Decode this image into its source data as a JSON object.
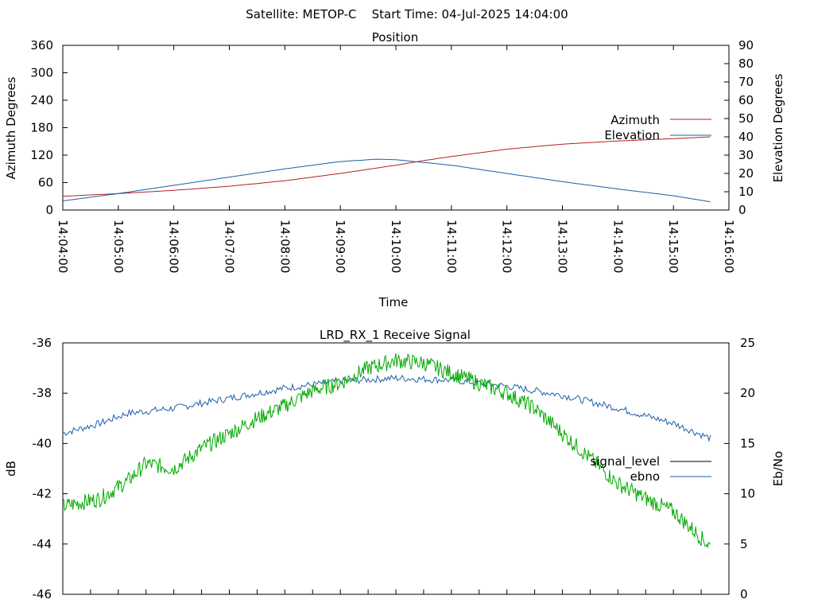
{
  "header": {
    "text": "Satellite: METOP-C    Start Time: 04-Jul-2025 14:04:00"
  },
  "colors": {
    "azimuth": "#b22222",
    "elevation": "#1f5fa8",
    "signal_level": "#000000",
    "ebno": "#1f5fa8",
    "green_trace": "#00aa00",
    "axis": "#000000"
  },
  "chart_data": [
    {
      "type": "line",
      "title": "Position",
      "xlabel": "Time",
      "ylabel": "Azimuth Degrees",
      "y2label": "Elevation Degrees",
      "ylim": [
        0,
        360
      ],
      "y2lim": [
        0,
        90
      ],
      "yticks": [
        "0",
        "60",
        "120",
        "180",
        "240",
        "300",
        "360"
      ],
      "y2ticks": [
        "0",
        "10",
        "20",
        "30",
        "40",
        "50",
        "60",
        "70",
        "80",
        "90"
      ],
      "xlim": [
        "14:04:00",
        "14:16:00"
      ],
      "xticks": [
        "14:04:00",
        "14:05:00",
        "14:06:00",
        "14:07:00",
        "14:08:00",
        "14:09:00",
        "14:10:00",
        "14:11:00",
        "14:12:00",
        "14:13:00",
        "14:14:00",
        "14:15:00",
        "14:16:00"
      ],
      "legend": "right",
      "series": [
        {
          "name": "Azimuth",
          "axis": "left",
          "color": "#b22222",
          "x": [
            "14:04:00",
            "14:05:00",
            "14:06:00",
            "14:07:00",
            "14:08:00",
            "14:09:00",
            "14:10:00",
            "14:10:30",
            "14:11:00",
            "14:12:00",
            "14:13:00",
            "14:14:00",
            "14:15:00",
            "14:15:40"
          ],
          "y": [
            30,
            36,
            43,
            52,
            64,
            80,
            98,
            108,
            117,
            133,
            144,
            151,
            156,
            160
          ]
        },
        {
          "name": "Elevation",
          "axis": "right",
          "color": "#1f5fa8",
          "x": [
            "14:04:00",
            "14:05:00",
            "14:06:00",
            "14:07:00",
            "14:08:00",
            "14:09:00",
            "14:09:40",
            "14:10:00",
            "14:11:00",
            "14:12:00",
            "14:13:00",
            "14:14:00",
            "14:15:00",
            "14:15:40"
          ],
          "y": [
            5,
            9,
            13.5,
            18,
            22.5,
            26.5,
            27.8,
            27.5,
            24.5,
            20,
            15.5,
            11.5,
            7.8,
            4.5
          ]
        }
      ]
    },
    {
      "type": "line",
      "title": "LRD_RX_1 Receive Signal",
      "ylabel": "dB",
      "y2label": "Eb/No",
      "ylim": [
        -46,
        -36
      ],
      "y2lim": [
        0,
        25
      ],
      "yticks": [
        "-36",
        "-38",
        "-40",
        "-42",
        "-44",
        "-46"
      ],
      "y2ticks": [
        "0",
        "5",
        "10",
        "15",
        "20",
        "25"
      ],
      "xlim": [
        "14:04:00",
        "14:16:00"
      ],
      "legend": "right",
      "series": [
        {
          "name": "signal_level",
          "axis": "left",
          "color": "#000000",
          "x": [],
          "y": []
        },
        {
          "name": "ebno",
          "axis": "right",
          "color": "#1f5fa8",
          "x": [
            "14:04:00",
            "14:04:40",
            "14:05:10",
            "14:06:00",
            "14:07:00",
            "14:08:00",
            "14:09:00",
            "14:10:00",
            "14:11:00",
            "14:12:00",
            "14:13:00",
            "14:14:00",
            "14:15:00",
            "14:15:40"
          ],
          "y": [
            16,
            17,
            18,
            18.5,
            19.5,
            20.5,
            21.2,
            21.5,
            21.3,
            20.7,
            19.8,
            18.5,
            17,
            15.5
          ]
        },
        {
          "color": "#00aa00",
          "axis": "left",
          "x": [
            "14:04:00",
            "14:04:40",
            "14:05:10",
            "14:05:30",
            "14:06:00",
            "14:06:30",
            "14:07:00",
            "14:07:30",
            "14:08:00",
            "14:08:30",
            "14:09:00",
            "14:09:30",
            "14:10:00",
            "14:10:30",
            "14:11:00",
            "14:11:30",
            "14:12:00",
            "14:12:30",
            "14:13:00",
            "14:13:30",
            "14:14:00",
            "14:14:30",
            "14:15:00",
            "14:15:40"
          ],
          "y": [
            -42.5,
            -42.2,
            -41.5,
            -40.8,
            -41,
            -40.2,
            -39.6,
            -39,
            -38.5,
            -37.9,
            -37.6,
            -37.0,
            -36.7,
            -36.8,
            -37.2,
            -37.6,
            -38.0,
            -38.6,
            -39.6,
            -40.6,
            -41.6,
            -42.2,
            -42.7,
            -44.1
          ]
        }
      ]
    }
  ]
}
